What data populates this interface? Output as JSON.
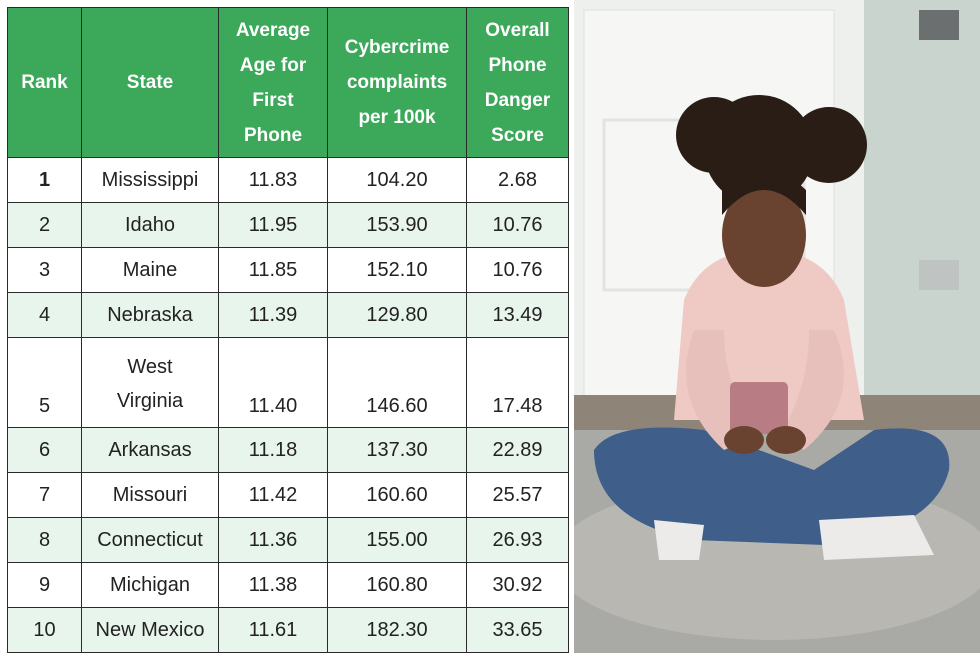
{
  "table": {
    "headers": [
      "Rank",
      "State",
      "Average Age for First Phone",
      "Cybercrime complaints per 100k",
      "Overall Phone Danger Score"
    ],
    "rows": [
      [
        "1",
        "Mississippi",
        "11.83",
        "104.20",
        "2.68"
      ],
      [
        "2",
        "Idaho",
        "11.95",
        "153.90",
        "10.76"
      ],
      [
        "3",
        "Maine",
        "11.85",
        "152.10",
        "10.76"
      ],
      [
        "4",
        "Nebraska",
        "11.39",
        "129.80",
        "13.49"
      ],
      [
        "5",
        "West Virginia",
        "11.40",
        "146.60",
        "17.48"
      ],
      [
        "6",
        "Arkansas",
        "11.18",
        "137.30",
        "22.89"
      ],
      [
        "7",
        "Missouri",
        "11.42",
        "160.60",
        "25.57"
      ],
      [
        "8",
        "Connecticut",
        "11.36",
        "155.00",
        "26.93"
      ],
      [
        "9",
        "Michigan",
        "11.38",
        "160.80",
        "30.92"
      ],
      [
        "10",
        "New Mexico",
        "11.61",
        "182.30",
        "33.65"
      ]
    ]
  }
}
